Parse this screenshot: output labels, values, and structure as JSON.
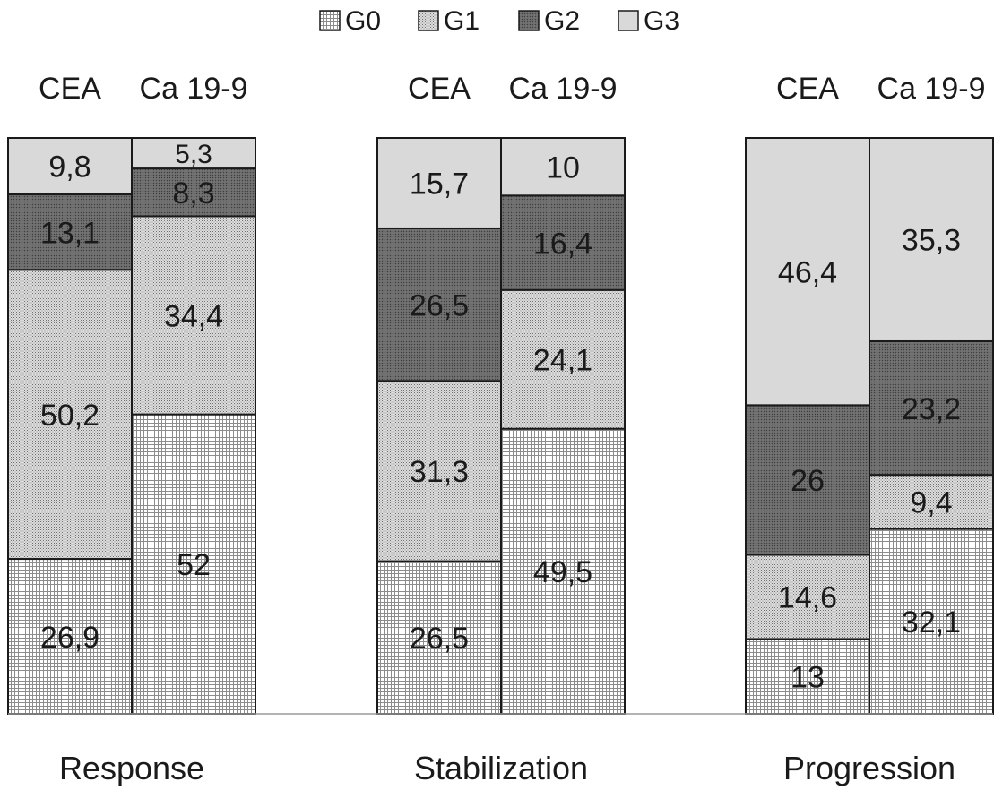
{
  "chart_data": {
    "type": "bar",
    "stacked": true,
    "percent": true,
    "legend": {
      "position": "top",
      "entries": [
        {
          "name": "G0",
          "pattern": "grid"
        },
        {
          "name": "G1",
          "pattern": "dots"
        },
        {
          "name": "G2",
          "pattern": "dark"
        },
        {
          "name": "G3",
          "pattern": "light"
        }
      ]
    },
    "groups": [
      {
        "label": "Response",
        "bars": [
          {
            "label": "CEA",
            "values": {
              "G0": 26.9,
              "G1": 50.2,
              "G2": 13.1,
              "G3": 9.8
            },
            "value_labels": {
              "G0": "26,9",
              "G1": "50,2",
              "G2": "13,1",
              "G3": "9,8"
            }
          },
          {
            "label": "Ca 19-9",
            "values": {
              "G0": 52,
              "G1": 34.4,
              "G2": 8.3,
              "G3": 5.3
            },
            "value_labels": {
              "G0": "52",
              "G1": "34,4",
              "G2": "8,3",
              "G3": "5,3"
            }
          }
        ]
      },
      {
        "label": "Stabilization",
        "bars": [
          {
            "label": "CEA",
            "values": {
              "G0": 26.5,
              "G1": 31.3,
              "G2": 26.5,
              "G3": 15.7
            },
            "value_labels": {
              "G0": "26,5",
              "G1": "31,3",
              "G2": "26,5",
              "G3": "15,7"
            }
          },
          {
            "label": "Ca 19-9",
            "values": {
              "G0": 49.5,
              "G1": 24.1,
              "G2": 16.4,
              "G3": 10
            },
            "value_labels": {
              "G0": "49,5",
              "G1": "24,1",
              "G2": "16,4",
              "G3": "10"
            }
          }
        ]
      },
      {
        "label": "Progression",
        "bars": [
          {
            "label": "CEA",
            "values": {
              "G0": 13,
              "G1": 14.6,
              "G2": 26,
              "G3": 46.4
            },
            "value_labels": {
              "G0": "13",
              "G1": "14,6",
              "G2": "26",
              "G3": "46,4"
            }
          },
          {
            "label": "Ca 19-9",
            "values": {
              "G0": 32.1,
              "G1": 9.4,
              "G2": 23.2,
              "G3": 35.3
            },
            "value_labels": {
              "G0": "32,1",
              "G1": "9,4",
              "G2": "23,2",
              "G3": "35,3"
            }
          }
        ]
      }
    ],
    "ylim": [
      0,
      100
    ],
    "grid": false
  }
}
